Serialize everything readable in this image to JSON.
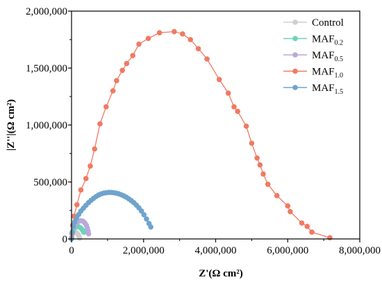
{
  "chart_data": {
    "type": "scatter",
    "title": "",
    "xlabel": "Z'(Ω cm²)",
    "ylabel": "|Z''|(Ω cm²)",
    "xlim": [
      0,
      8000000
    ],
    "ylim": [
      0,
      2000000
    ],
    "xticks": [
      0,
      2000000,
      4000000,
      6000000,
      8000000
    ],
    "xtick_labels": [
      "0",
      "2,000,000",
      "4,000,000",
      "6,000,000",
      "8,000,000"
    ],
    "yticks": [
      0,
      500000,
      1000000,
      1500000,
      2000000
    ],
    "ytick_labels": [
      "0",
      "500,000",
      "1,000,000",
      "1,500,000",
      "2,000,000"
    ],
    "grid": false,
    "legend_position": "top-right",
    "series": [
      {
        "name": "Control",
        "label_main": "Control",
        "label_sub": "",
        "color": "#cfcfcf",
        "x": [
          3000,
          15000,
          35000,
          60000,
          90000,
          120000,
          150000,
          175000,
          195000,
          210000,
          220000,
          226000
        ],
        "y": [
          5000,
          30000,
          52000,
          62000,
          64000,
          60000,
          52000,
          42000,
          32000,
          22000,
          12000,
          6000
        ]
      },
      {
        "name": "MAF0.2",
        "label_main": "MAF",
        "label_sub": "0.2",
        "color": "#6dd3b8",
        "x": [
          5000,
          20000,
          50000,
          90000,
          140000,
          190000,
          240000,
          280000,
          310000,
          330000,
          345000
        ],
        "y": [
          8000,
          45000,
          80000,
          100000,
          110000,
          108000,
          100000,
          88000,
          75000,
          65000,
          58000
        ]
      },
      {
        "name": "MAF0.5",
        "label_main": "MAF",
        "label_sub": "0.5",
        "color": "#b8a9d9",
        "x": [
          5000,
          30000,
          80000,
          140000,
          200000,
          260000,
          320000,
          370000,
          410000,
          440000,
          460000,
          475000
        ],
        "y": [
          10000,
          60000,
          110000,
          140000,
          155000,
          160000,
          155000,
          140000,
          120000,
          95000,
          70000,
          45000
        ],
        "y_note": ""
      },
      {
        "name": "MAF1.0",
        "label_main": "MAF",
        "label_sub": "1.0",
        "color": "#f07a63",
        "x": [
          2000,
          10000,
          30000,
          70000,
          150000,
          260000,
          400000,
          520000,
          640000,
          790000,
          960000,
          1150000,
          1250000,
          1410000,
          1530000,
          1700000,
          1870000,
          2130000,
          2440000,
          2850000,
          3080000,
          3300000,
          3520000,
          3760000,
          4100000,
          4350000,
          4510000,
          4610000,
          4850000,
          5000000,
          5150000,
          5230000,
          5320000,
          5450000,
          5700000,
          6000000,
          6070000,
          6390000,
          6540000,
          6670000,
          7170000
        ],
        "y": [
          5000,
          50000,
          120000,
          200000,
          300000,
          430000,
          530000,
          640000,
          790000,
          1010000,
          1160000,
          1300000,
          1390000,
          1480000,
          1540000,
          1610000,
          1710000,
          1760000,
          1810000,
          1820000,
          1800000,
          1750000,
          1670000,
          1580000,
          1400000,
          1280000,
          1160000,
          1120000,
          990000,
          840000,
          710000,
          650000,
          570000,
          480000,
          380000,
          290000,
          240000,
          140000,
          110000,
          60000,
          10000
        ]
      },
      {
        "name": "MAF1.5",
        "label_main": "MAF",
        "label_sub": "1.5",
        "color": "#6ea4cc",
        "x": [
          0,
          20000,
          50000,
          90000,
          140000,
          200000,
          260000,
          330000,
          400000,
          470000,
          540000,
          610000,
          680000,
          750000,
          820000,
          890000,
          960000,
          1030000,
          1100000,
          1170000,
          1240000,
          1310000,
          1380000,
          1450000,
          1520000,
          1590000,
          1660000,
          1730000,
          1800000,
          1870000,
          1940000,
          2010000,
          2080000,
          2150000,
          2200000
        ],
        "y": [
          0,
          60000,
          110000,
          150000,
          185000,
          215000,
          245000,
          270000,
          295000,
          318000,
          338000,
          356000,
          372000,
          385000,
          395000,
          402000,
          406000,
          408000,
          408000,
          406000,
          402000,
          396000,
          388000,
          378000,
          366000,
          352000,
          336000,
          318000,
          297000,
          273000,
          245000,
          212000,
          175000,
          135000,
          105000
        ]
      }
    ]
  }
}
